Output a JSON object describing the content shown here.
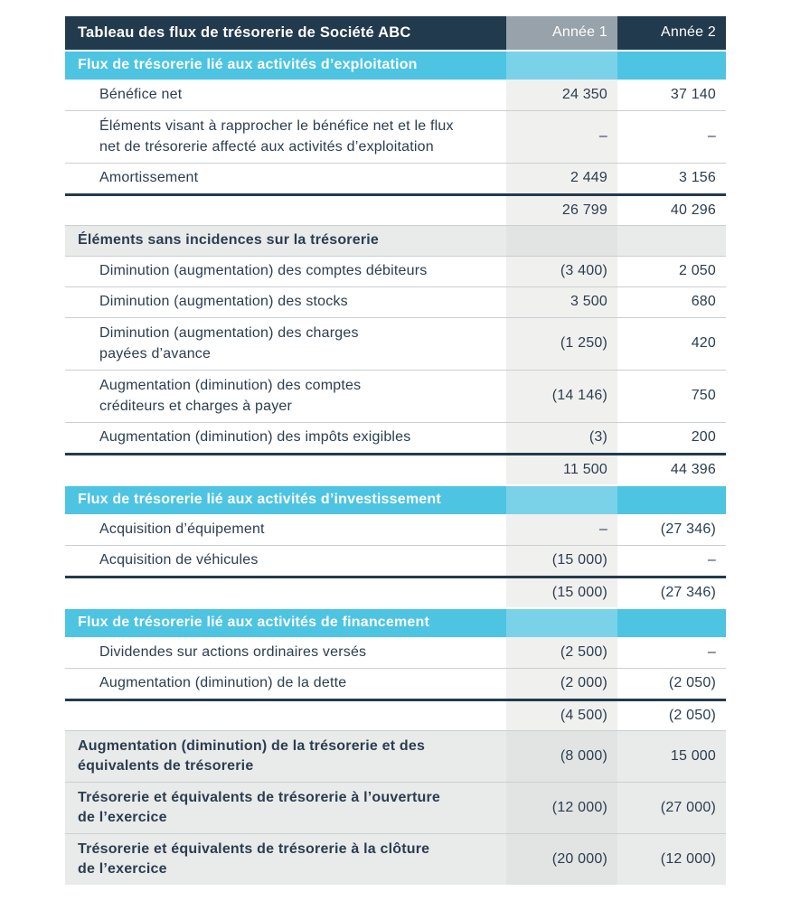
{
  "table": {
    "title": "Tableau des flux de trésorerie de Société ABC",
    "columns": [
      "Année 1",
      "Année 2"
    ],
    "colors": {
      "header_bg": "#223A4D",
      "header_col1_bg": "#98A2AA",
      "section_bg": "#4CC4E2",
      "section_col1_bg": "#7AD2E9",
      "col1_band_bg": "#F0F0EF",
      "gray_row_bg": "#E9EAEA",
      "gray_row_col1_bg": "#E2E3E3",
      "text": "#2B3D50",
      "hairline": "#CBCFD1"
    },
    "rows": [
      {
        "type": "section",
        "label": "Flux de trésorerie lié aux activités d’exploitation",
        "v1": "",
        "v2": ""
      },
      {
        "type": "data",
        "label": "Bénéfice net",
        "v1": "24 350",
        "v2": "37 140"
      },
      {
        "type": "data",
        "lines": 2,
        "label": "Éléments visant à rapprocher le bénéfice net et le flux\nnet de trésorerie affecté aux activités d’exploitation",
        "v1": "–",
        "v2": "–"
      },
      {
        "type": "data",
        "label": "Amortissement",
        "v1": "2 449",
        "v2": "3 156"
      },
      {
        "type": "subtotal",
        "label": "",
        "v1": "26 799",
        "v2": "40 296"
      },
      {
        "type": "grayhead",
        "label": "Éléments sans incidences sur la trésorerie",
        "v1": "",
        "v2": ""
      },
      {
        "type": "data",
        "label": "Diminution (augmentation) des comptes débiteurs",
        "v1": "(3 400)",
        "v2": "2 050"
      },
      {
        "type": "data",
        "label": "Diminution (augmentation) des stocks",
        "v1": "3 500",
        "v2": "680"
      },
      {
        "type": "data",
        "lines": 2,
        "label": "Diminution (augmentation) des charges\npayées d’avance",
        "v1": "(1 250)",
        "v2": "420"
      },
      {
        "type": "data",
        "lines": 2,
        "label": "Augmentation (diminution) des comptes\ncréditeurs et charges à payer",
        "v1": "(14 146)",
        "v2": "750"
      },
      {
        "type": "data",
        "label": "Augmentation (diminution) des impôts exigibles",
        "v1": "(3)",
        "v2": "200"
      },
      {
        "type": "subtotal",
        "label": "",
        "v1": "11 500",
        "v2": "44 396"
      },
      {
        "type": "section",
        "label": "Flux de trésorerie lié aux activités d’investissement",
        "v1": "",
        "v2": ""
      },
      {
        "type": "data",
        "label": "Acquisition d’équipement",
        "v1": "–",
        "v2": "(27 346)"
      },
      {
        "type": "data",
        "label": "Acquisition de véhicules",
        "v1": "(15 000)",
        "v2": "–"
      },
      {
        "type": "subtotal",
        "label": "",
        "v1": "(15 000)",
        "v2": "(27 346)"
      },
      {
        "type": "section",
        "label": "Flux de trésorerie lié aux activités de financement",
        "v1": "",
        "v2": ""
      },
      {
        "type": "data",
        "label": "Dividendes sur actions ordinaires versés",
        "v1": "(2 500)",
        "v2": "–"
      },
      {
        "type": "data",
        "label": "Augmentation (diminution) de la dette",
        "v1": "(2 000)",
        "v2": "(2 050)"
      },
      {
        "type": "subtotal",
        "label": "",
        "v1": "(4 500)",
        "v2": "(2 050)"
      },
      {
        "type": "boldrow",
        "lines": 2,
        "label": "Augmentation (diminution) de la trésorerie et des\néquivalents de trésorerie",
        "v1": "(8 000)",
        "v2": "15 000"
      },
      {
        "type": "boldrow",
        "lines": 2,
        "label": "Trésorerie et équivalents de trésorerie à l’ouverture\nde l’exercice",
        "v1": "(12 000)",
        "v2": "(27 000)"
      },
      {
        "type": "boldrow",
        "lines": 2,
        "label": "Trésorerie et équivalents de trésorerie à la clôture\nde l’exercice",
        "v1": "(20 000)",
        "v2": "(12 000)"
      }
    ]
  }
}
